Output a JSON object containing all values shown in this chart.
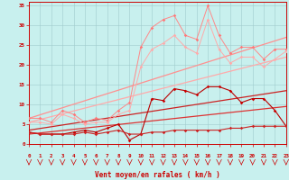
{
  "xlabel": "Vent moyen/en rafales ( km/h )",
  "xlim": [
    0,
    23
  ],
  "ylim": [
    0,
    36
  ],
  "yticks": [
    0,
    5,
    10,
    15,
    20,
    25,
    30,
    35
  ],
  "xticks": [
    0,
    1,
    2,
    3,
    4,
    5,
    6,
    7,
    8,
    9,
    10,
    11,
    12,
    13,
    14,
    15,
    16,
    17,
    18,
    19,
    20,
    21,
    22,
    23
  ],
  "bg_color": "#c8f0ee",
  "grid_color": "#a0cccc",
  "x": [
    0,
    1,
    2,
    3,
    4,
    5,
    6,
    7,
    8,
    9,
    10,
    11,
    12,
    13,
    14,
    15,
    16,
    17,
    18,
    19,
    20,
    21,
    22,
    23
  ],
  "pink1": [
    6.5,
    6.5,
    5.5,
    8.5,
    7.5,
    5.5,
    6.5,
    6.0,
    8.5,
    10.5,
    24.5,
    29.5,
    31.5,
    32.5,
    27.5,
    26.5,
    35.0,
    27.5,
    23.0,
    24.5,
    24.5,
    21.5,
    24.0,
    24.0
  ],
  "pink2": [
    5.5,
    5.5,
    5.0,
    7.5,
    6.5,
    5.0,
    5.5,
    5.5,
    7.5,
    8.5,
    19.5,
    24.0,
    25.5,
    27.5,
    24.5,
    23.0,
    31.5,
    24.0,
    20.5,
    22.0,
    22.0,
    19.5,
    21.5,
    23.5
  ],
  "trend_line1_pts": [
    [
      0,
      6.5
    ],
    [
      23,
      27.0
    ]
  ],
  "trend_line2_pts": [
    [
      0,
      5.5
    ],
    [
      23,
      22.0
    ]
  ],
  "trend_line3_pts": [
    [
      0,
      3.5
    ],
    [
      23,
      13.5
    ]
  ],
  "trend_line4_pts": [
    [
      0,
      2.5
    ],
    [
      23,
      9.5
    ]
  ],
  "dark1": [
    3.0,
    2.5,
    2.5,
    2.5,
    3.0,
    3.5,
    3.0,
    4.0,
    5.0,
    1.0,
    2.5,
    11.5,
    11.0,
    14.0,
    13.5,
    12.5,
    14.5,
    14.5,
    13.5,
    10.5,
    11.5,
    11.5,
    8.5,
    4.5
  ],
  "dark2": [
    3.0,
    2.5,
    2.5,
    2.5,
    2.5,
    3.0,
    2.5,
    3.0,
    3.5,
    2.5,
    2.5,
    3.0,
    3.0,
    3.5,
    3.5,
    3.5,
    3.5,
    3.5,
    4.0,
    4.0,
    4.5,
    4.5,
    4.5,
    4.5
  ],
  "tick_color": "#cc0000",
  "label_color": "#cc0000",
  "spine_color": "#cc0000"
}
